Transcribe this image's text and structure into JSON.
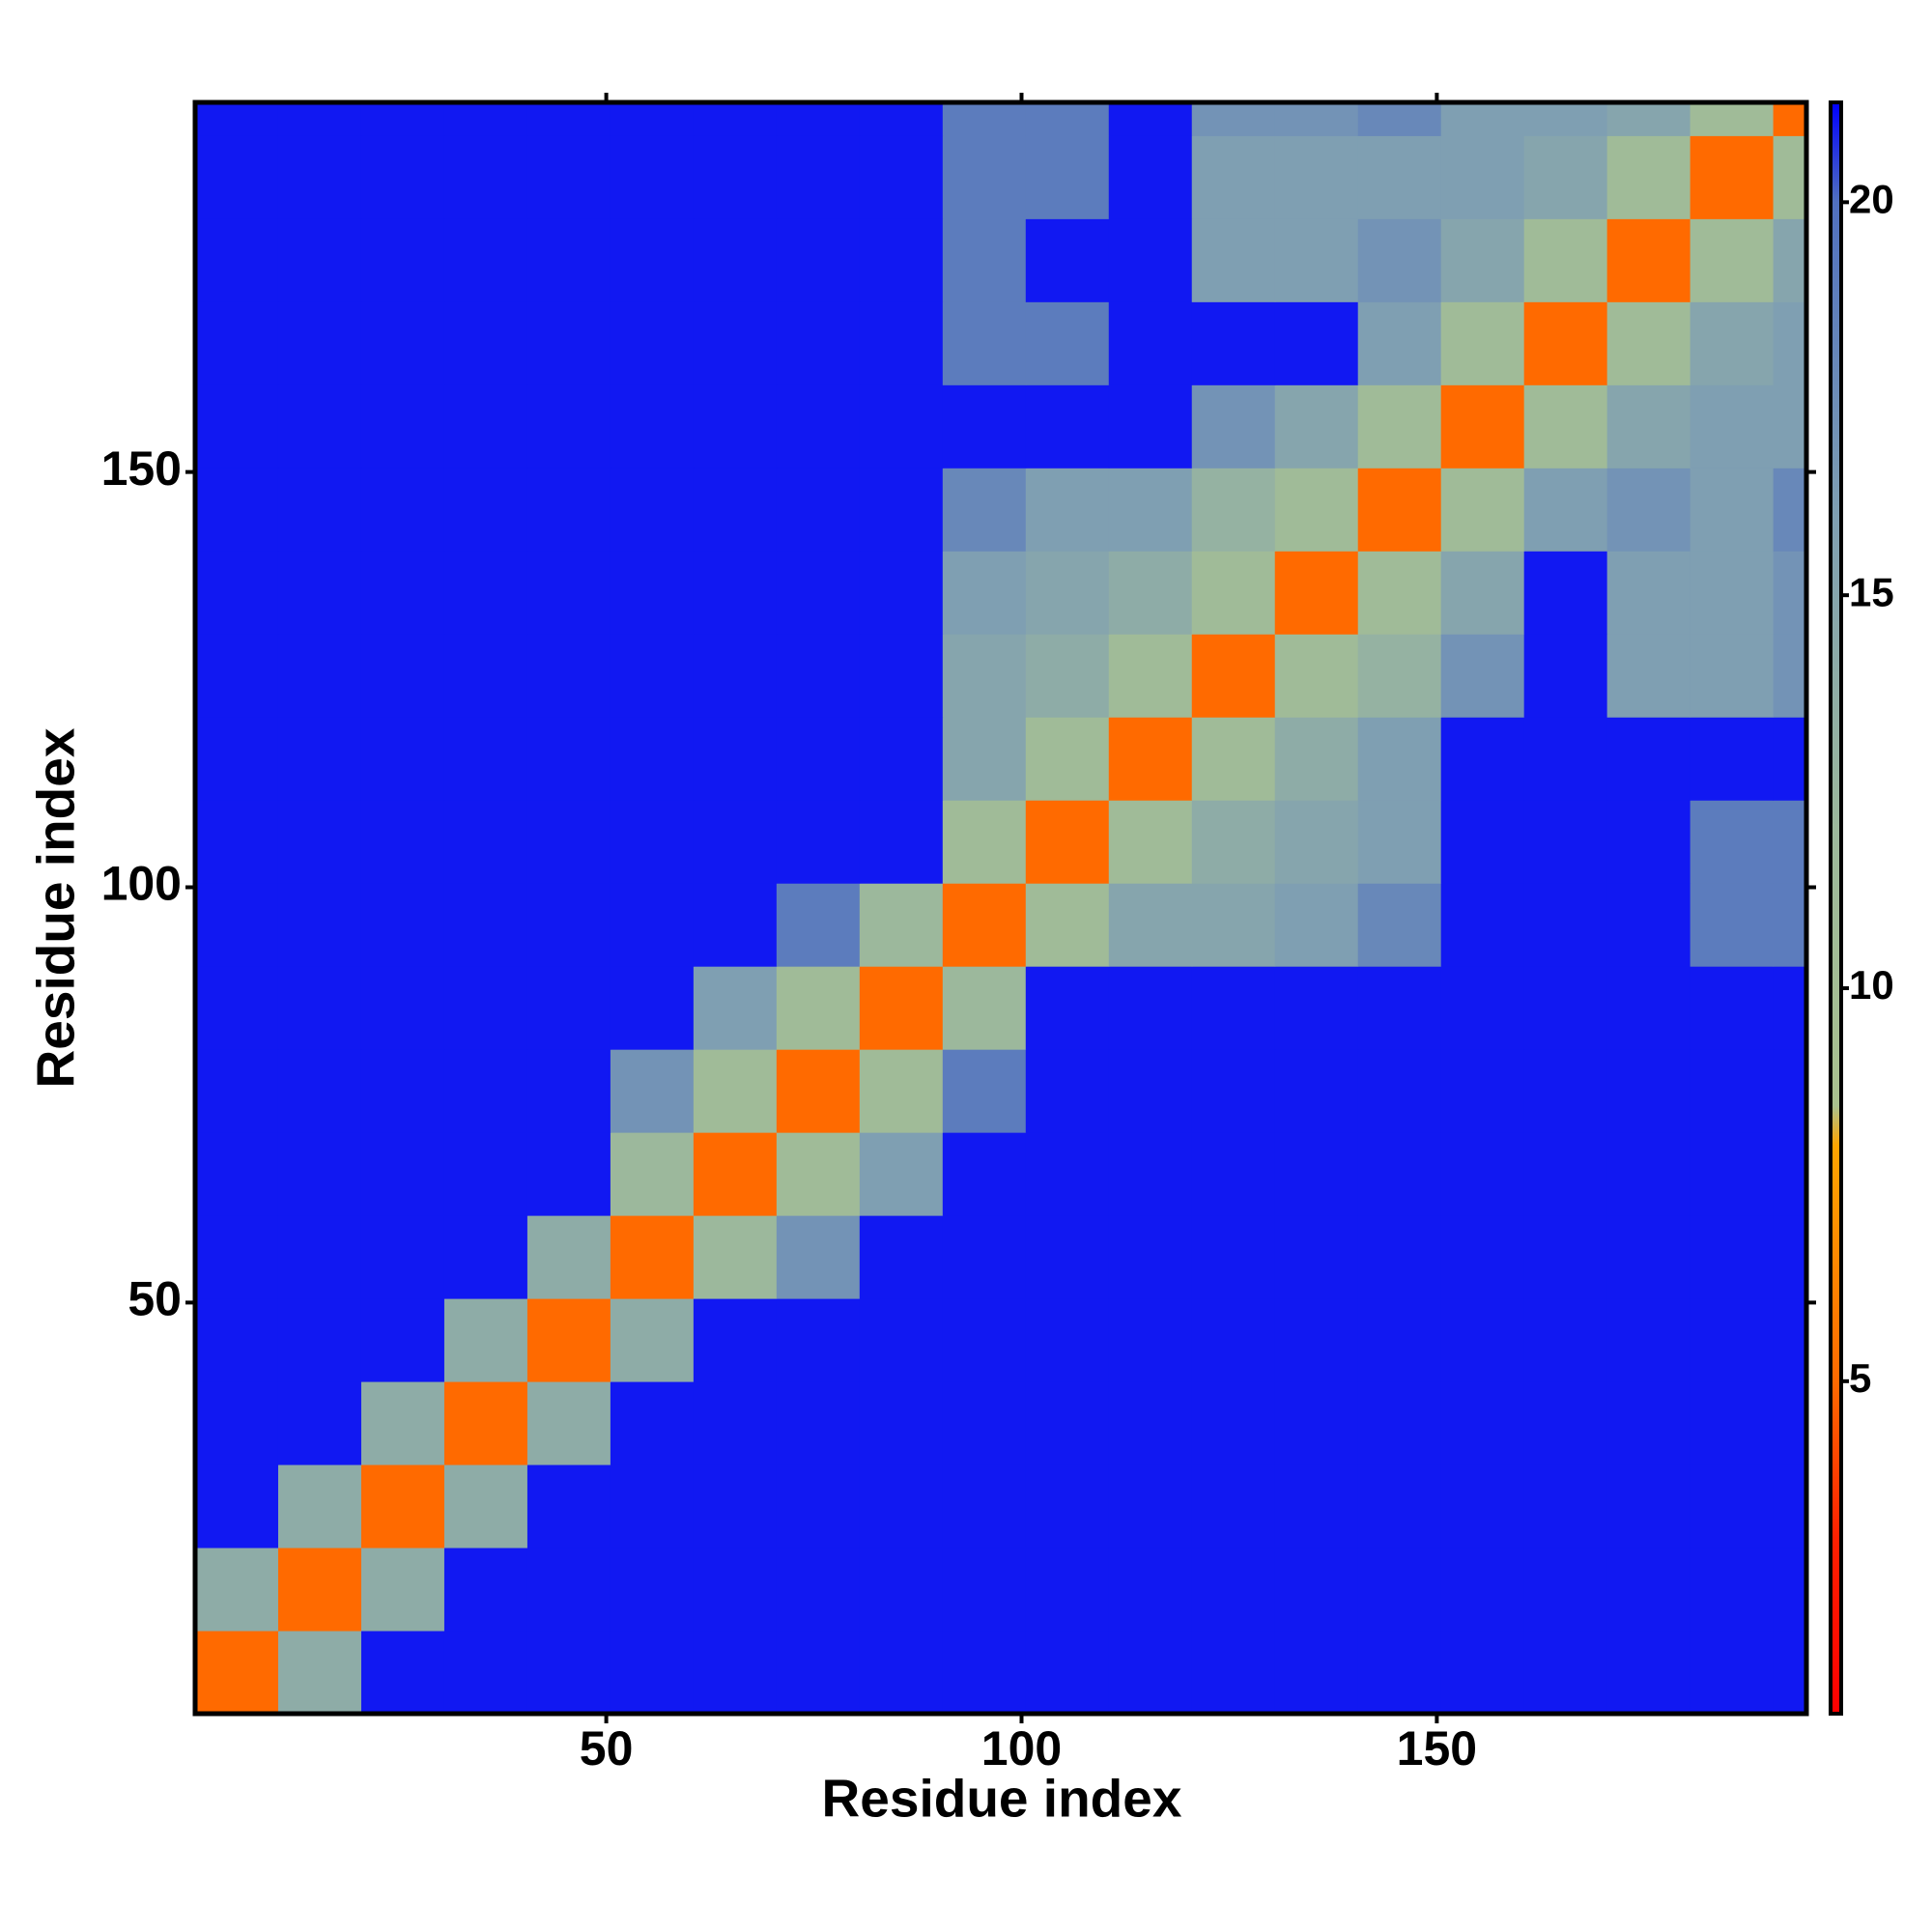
{
  "chart_data": {
    "type": "heatmap",
    "xlabel": "Residue index",
    "ylabel": "Residue index",
    "x_bins": [
      0.5,
      10.5,
      20.5,
      30.5,
      40.5,
      50.5,
      60.5,
      70.5,
      80.5,
      90.5,
      100.5,
      110.5,
      120.5,
      130.5,
      140.5,
      150.5,
      160.5,
      170.5,
      180.5,
      190.5,
      194.5
    ],
    "y_bins": [
      0.5,
      10.5,
      20.5,
      30.5,
      40.5,
      50.5,
      60.5,
      70.5,
      80.5,
      90.5,
      100.5,
      110.5,
      120.5,
      130.5,
      140.5,
      150.5,
      160.5,
      170.5,
      180.5,
      190.5,
      194.5
    ],
    "z": [
      [
        5,
        14,
        21,
        21,
        21,
        21,
        21,
        21,
        21,
        21,
        21,
        21,
        21,
        21,
        21,
        21,
        21,
        21,
        21,
        21
      ],
      [
        14,
        5,
        14,
        21,
        21,
        21,
        21,
        21,
        21,
        21,
        21,
        21,
        21,
        21,
        21,
        21,
        21,
        21,
        21,
        21
      ],
      [
        21,
        14,
        5,
        14,
        21,
        21,
        21,
        21,
        21,
        21,
        21,
        21,
        21,
        21,
        21,
        21,
        21,
        21,
        21,
        21
      ],
      [
        21,
        21,
        14,
        5,
        14,
        21,
        21,
        21,
        21,
        21,
        21,
        21,
        21,
        21,
        21,
        21,
        21,
        21,
        21,
        21
      ],
      [
        21,
        21,
        21,
        14,
        5,
        14,
        21,
        21,
        21,
        21,
        21,
        21,
        21,
        21,
        21,
        21,
        21,
        21,
        21,
        21
      ],
      [
        21,
        21,
        21,
        21,
        14,
        5,
        12,
        17,
        21,
        21,
        21,
        21,
        21,
        21,
        21,
        21,
        21,
        21,
        21,
        21
      ],
      [
        21,
        21,
        21,
        21,
        21,
        12,
        5,
        11,
        16,
        21,
        21,
        21,
        21,
        21,
        21,
        21,
        21,
        21,
        21,
        21
      ],
      [
        21,
        21,
        21,
        21,
        21,
        17,
        11,
        5,
        11,
        19,
        21,
        21,
        21,
        21,
        21,
        21,
        21,
        21,
        21,
        21
      ],
      [
        21,
        21,
        21,
        21,
        21,
        21,
        16,
        11,
        5,
        12,
        21,
        21,
        21,
        21,
        21,
        21,
        21,
        21,
        21,
        21
      ],
      [
        21,
        21,
        21,
        21,
        21,
        21,
        21,
        19,
        12,
        5,
        11,
        15,
        15,
        16,
        18,
        21,
        21,
        21,
        19,
        19
      ],
      [
        21,
        21,
        21,
        21,
        21,
        21,
        21,
        21,
        21,
        11,
        5,
        11,
        14,
        15,
        16,
        21,
        21,
        21,
        19,
        19
      ],
      [
        21,
        21,
        21,
        21,
        21,
        21,
        21,
        21,
        21,
        15,
        11,
        5,
        11,
        14,
        16,
        21,
        21,
        21,
        21,
        21
      ],
      [
        21,
        21,
        21,
        21,
        21,
        21,
        21,
        21,
        21,
        15,
        14,
        11,
        5,
        11,
        13,
        17,
        21,
        16,
        16,
        17
      ],
      [
        21,
        21,
        21,
        21,
        21,
        21,
        21,
        21,
        21,
        16,
        15,
        14,
        11,
        5,
        11,
        15,
        21,
        16,
        16,
        17
      ],
      [
        21,
        21,
        21,
        21,
        21,
        21,
        21,
        21,
        21,
        18,
        16,
        16,
        13,
        11,
        5,
        11,
        16,
        17,
        16,
        18
      ],
      [
        21,
        21,
        21,
        21,
        21,
        21,
        21,
        21,
        21,
        21,
        21,
        21,
        17,
        15,
        11,
        5,
        11,
        15,
        16,
        16
      ],
      [
        21,
        21,
        21,
        21,
        21,
        21,
        21,
        21,
        21,
        19,
        19,
        21,
        21,
        21,
        16,
        11,
        5,
        11,
        15,
        16
      ],
      [
        21,
        21,
        21,
        21,
        21,
        21,
        21,
        21,
        21,
        19,
        21,
        21,
        16,
        16,
        17,
        15,
        11,
        5,
        11,
        15
      ],
      [
        21,
        21,
        21,
        21,
        21,
        21,
        21,
        21,
        21,
        19,
        19,
        21,
        16,
        16,
        16,
        16,
        15,
        11,
        5,
        11
      ],
      [
        21,
        21,
        21,
        21,
        21,
        21,
        21,
        21,
        21,
        19,
        19,
        21,
        17,
        17,
        18,
        16,
        16,
        15,
        11,
        5
      ]
    ],
    "xlim": [
      0.5,
      194.5
    ],
    "ylim": [
      0.5,
      194.5
    ],
    "xticks": [
      50,
      100,
      150
    ],
    "yticks": [
      50,
      100,
      150
    ],
    "clim": [
      0.77,
      21.27
    ],
    "cticks": [
      5,
      10,
      15,
      20
    ],
    "colorscale": [
      [
        0.77,
        "#ff0000"
      ],
      [
        3,
        "#ff2000"
      ],
      [
        5,
        "#ff6a00"
      ],
      [
        8,
        "#ffa500"
      ],
      [
        8.5,
        "#a9c18f"
      ],
      [
        12,
        "#9cb89c"
      ],
      [
        16,
        "#7f9fb2"
      ],
      [
        20,
        "#5070c0"
      ],
      [
        21.27,
        "#0000ff"
      ]
    ]
  }
}
